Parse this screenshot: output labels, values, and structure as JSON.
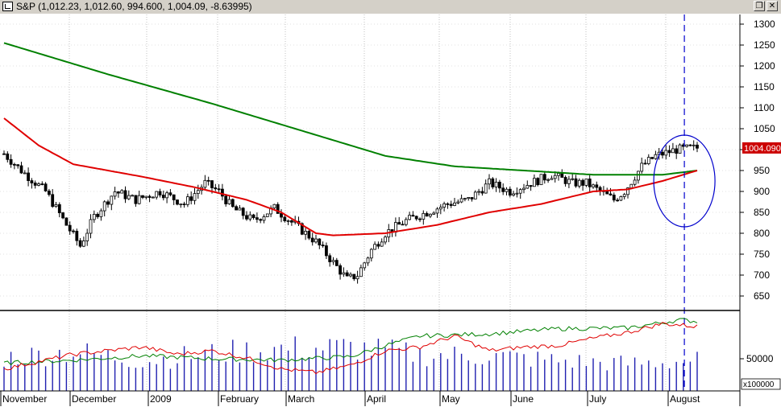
{
  "window": {
    "title": "S&P (1,012.23, 1,012.60, 994.600, 1,004.09, -8.63995)",
    "restore_glyph": "❐",
    "close_glyph": "✕"
  },
  "chart_data": [
    {
      "type": "candlestick",
      "title": "S&P (1,012.23, 1,012.60, 994.600, 1,004.09, -8.63995)",
      "last_value_label": "1004.090",
      "ylim": [
        620,
        1320
      ],
      "y_ticks": [
        650,
        700,
        750,
        800,
        850,
        900,
        950,
        1000,
        1050,
        1100,
        1150,
        1200,
        1250,
        1300
      ],
      "x_labels": [
        "November",
        "December",
        "2009",
        "February",
        "March",
        "April",
        "May",
        "June",
        "July",
        "August"
      ],
      "grid": true,
      "colors": {
        "ma_long": "#008000",
        "ma_short": "#e00000",
        "marker": "#0000cc",
        "candle": "#000000",
        "last_value_bg": "#cc0000"
      },
      "price_anchors": [
        [
          0,
          990
        ],
        [
          5,
          950
        ],
        [
          12,
          900
        ],
        [
          18,
          820
        ],
        [
          22,
          770
        ],
        [
          26,
          840
        ],
        [
          32,
          900
        ],
        [
          38,
          880
        ],
        [
          45,
          900
        ],
        [
          52,
          870
        ],
        [
          58,
          920
        ],
        [
          62,
          900
        ],
        [
          66,
          860
        ],
        [
          72,
          830
        ],
        [
          78,
          860
        ],
        [
          84,
          820
        ],
        [
          90,
          780
        ],
        [
          95,
          730
        ],
        [
          99,
          690
        ],
        [
          102,
          700
        ],
        [
          106,
          760
        ],
        [
          110,
          800
        ],
        [
          116,
          830
        ],
        [
          122,
          850
        ],
        [
          128,
          870
        ],
        [
          134,
          880
        ],
        [
          140,
          920
        ],
        [
          146,
          900
        ],
        [
          152,
          920
        ],
        [
          158,
          940
        ],
        [
          164,
          920
        ],
        [
          168,
          920
        ],
        [
          172,
          900
        ],
        [
          176,
          880
        ],
        [
          179,
          900
        ],
        [
          184,
          960
        ],
        [
          188,
          985
        ],
        [
          194,
          1000
        ],
        [
          200,
          1004
        ]
      ],
      "ma_long": [
        [
          0,
          1255
        ],
        [
          30,
          1180
        ],
        [
          60,
          1110
        ],
        [
          90,
          1035
        ],
        [
          110,
          985
        ],
        [
          130,
          960
        ],
        [
          150,
          950
        ],
        [
          170,
          940
        ],
        [
          190,
          940
        ],
        [
          200,
          950
        ]
      ],
      "ma_short": [
        [
          0,
          1075
        ],
        [
          10,
          1010
        ],
        [
          20,
          965
        ],
        [
          40,
          935
        ],
        [
          55,
          910
        ],
        [
          70,
          880
        ],
        [
          80,
          850
        ],
        [
          90,
          800
        ],
        [
          95,
          795
        ],
        [
          110,
          800
        ],
        [
          125,
          820
        ],
        [
          140,
          850
        ],
        [
          155,
          870
        ],
        [
          170,
          900
        ],
        [
          180,
          905
        ],
        [
          190,
          925
        ],
        [
          200,
          950
        ]
      ],
      "marker_index": 197
    },
    {
      "type": "bar",
      "y_ticks": [
        50000
      ],
      "multiplier_label": "x100000",
      "volume_profile": [
        [
          0,
          0.55
        ],
        [
          20,
          0.65
        ],
        [
          40,
          0.5
        ],
        [
          60,
          0.62
        ],
        [
          80,
          0.7
        ],
        [
          100,
          0.72
        ],
        [
          120,
          0.6
        ],
        [
          140,
          0.58
        ],
        [
          160,
          0.5
        ],
        [
          180,
          0.45
        ],
        [
          200,
          0.5
        ]
      ],
      "line_green": [
        [
          0,
          0.38
        ],
        [
          20,
          0.42
        ],
        [
          40,
          0.48
        ],
        [
          60,
          0.44
        ],
        [
          80,
          0.42
        ],
        [
          100,
          0.47
        ],
        [
          110,
          0.62
        ],
        [
          120,
          0.75
        ],
        [
          140,
          0.78
        ],
        [
          160,
          0.85
        ],
        [
          180,
          0.86
        ],
        [
          195,
          0.97
        ],
        [
          200,
          0.95
        ]
      ],
      "line_red": [
        [
          0,
          0.3
        ],
        [
          20,
          0.5
        ],
        [
          40,
          0.6
        ],
        [
          50,
          0.5
        ],
        [
          60,
          0.55
        ],
        [
          70,
          0.45
        ],
        [
          80,
          0.3
        ],
        [
          90,
          0.25
        ],
        [
          100,
          0.35
        ],
        [
          110,
          0.55
        ],
        [
          120,
          0.6
        ],
        [
          130,
          0.75
        ],
        [
          140,
          0.55
        ],
        [
          150,
          0.6
        ],
        [
          160,
          0.62
        ],
        [
          170,
          0.72
        ],
        [
          180,
          0.8
        ],
        [
          190,
          0.92
        ],
        [
          200,
          0.88
        ]
      ]
    }
  ]
}
